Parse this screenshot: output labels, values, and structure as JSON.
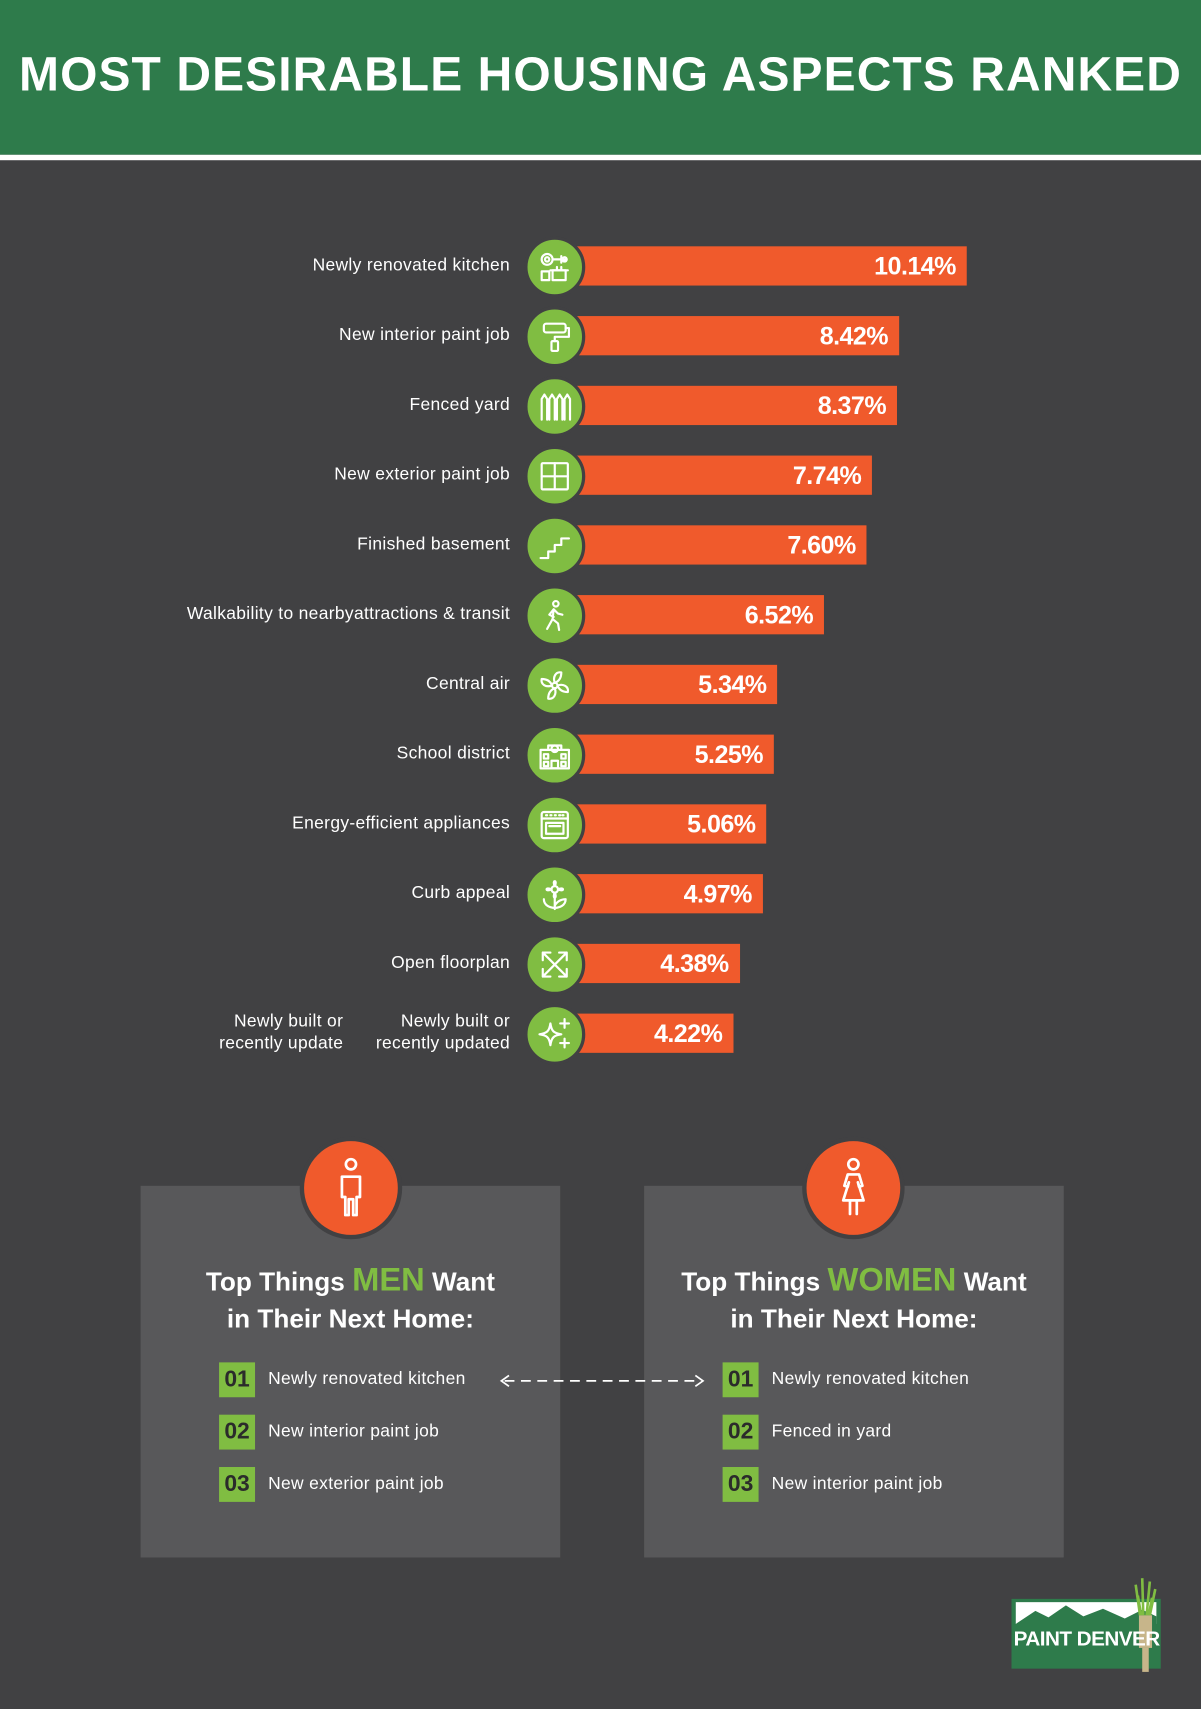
{
  "title": "MOST DESIRABLE HOUSING ASPECTS RANKED",
  "colors": {
    "header": "#2e7b4b",
    "bar": "#f05a2c",
    "accent_green": "#80bd42",
    "background": "#414143",
    "panel": "#58585a"
  },
  "chart_data": {
    "type": "bar",
    "orientation": "horizontal",
    "categories": [
      "Newly renovated kitchen",
      "New interior paint job",
      "Fenced yard",
      "New exterior paint job",
      "Finished basement",
      "Walkability to nearby attractions & transit",
      "Central air",
      "School district",
      "Energy-efficient appliances",
      "Curb appeal",
      "Open floorplan",
      "Newly built or recently updated"
    ],
    "values": [
      10.14,
      8.42,
      8.37,
      7.74,
      7.6,
      6.52,
      5.34,
      5.25,
      5.06,
      4.97,
      4.38,
      4.22
    ],
    "value_labels": [
      "10.14%",
      "8.42%",
      "8.37%",
      "7.74%",
      "7.60%",
      "6.52%",
      "5.34%",
      "5.25%",
      "5.06%",
      "4.97%",
      "4.38%",
      "4.22%"
    ],
    "icons": [
      "kitchen-icon",
      "paint-roller-icon",
      "fence-icon",
      "window-icon",
      "stairs-icon",
      "walking-person-icon",
      "fan-icon",
      "school-icon",
      "oven-icon",
      "flower-icon",
      "expand-arrows-icon",
      "sparkle-icon"
    ],
    "title": "MOST DESIRABLE HOUSING ASPECTS RANKED",
    "xlabel": "",
    "ylabel": ""
  },
  "men": {
    "icon": "man-icon",
    "title_pre": "Top Things ",
    "title_hl": "MEN",
    "title_post": " Want",
    "title_line2": "in Their Next Home:",
    "items": [
      {
        "num": "01",
        "text": "Newly renovated kitchen"
      },
      {
        "num": "02",
        "text": "New interior paint job"
      },
      {
        "num": "03",
        "text": "New exterior paint job"
      }
    ]
  },
  "women": {
    "icon": "woman-icon",
    "title_pre": "Top Things ",
    "title_hl": "WOMEN",
    "title_post": " Want",
    "title_line2": "in Their Next Home:",
    "items": [
      {
        "num": "01",
        "text": "Newly renovated kitchen"
      },
      {
        "num": "02",
        "text": "Fenced in yard"
      },
      {
        "num": "03",
        "text": "New interior paint job"
      }
    ]
  },
  "logo": {
    "text": "PAINT DENVER"
  }
}
